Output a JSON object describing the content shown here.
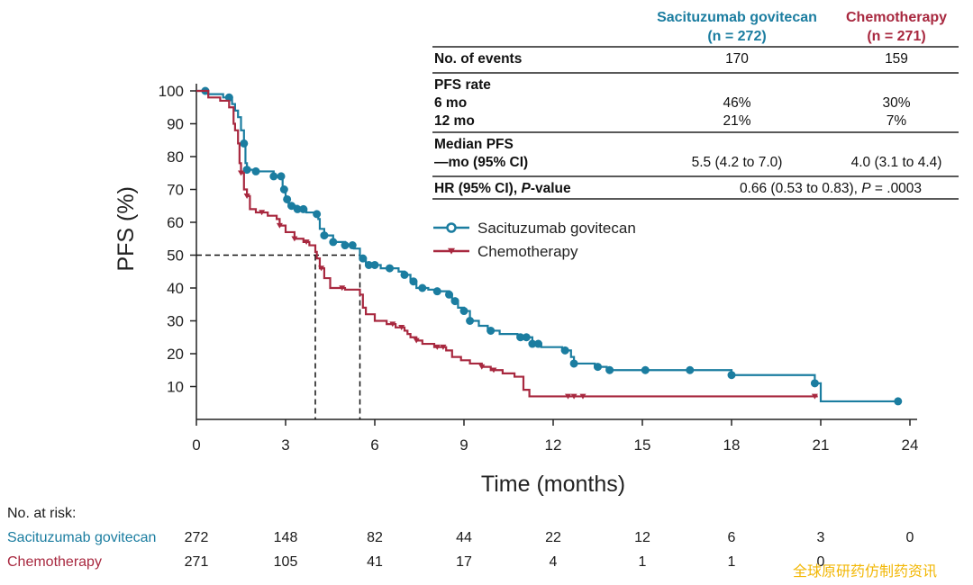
{
  "colors": {
    "sacituzumab": "#1b7da0",
    "chemotherapy": "#a8283f",
    "axis": "#222222",
    "watermark": "#f2b705"
  },
  "table": {
    "col1_header": [
      "Sacituzumab govitecan",
      "(n = 272)"
    ],
    "col2_header": [
      "Chemotherapy",
      "(n = 271)"
    ],
    "rows": [
      {
        "label": [
          "No. of events"
        ],
        "v1": [
          "170"
        ],
        "v2": [
          "159"
        ]
      },
      {
        "label": [
          "PFS rate",
          "6 mo",
          "12 mo"
        ],
        "v1": [
          "",
          "46%",
          "21%"
        ],
        "v2": [
          "",
          "30%",
          "7%"
        ]
      },
      {
        "label": [
          "Median PFS",
          "—mo (95% CI)"
        ],
        "v1": [
          "",
          "5.5 (4.2 to 7.0)"
        ],
        "v2": [
          "",
          "4.0 (3.1 to 4.4)"
        ]
      },
      {
        "label_html": "HR (95% CI), <tspan font-style=\"italic\">P</tspan>-value",
        "span_html": "0.66 (0.53 to 0.83), <tspan font-style=\"italic\">P</tspan> = .0003"
      }
    ]
  },
  "chart_data": {
    "type": "line",
    "title": "",
    "xlabel": "Time (months)",
    "ylabel": "PFS (%)",
    "xlim": [
      0,
      24
    ],
    "ylim": [
      0,
      100
    ],
    "xticks": [
      0,
      3,
      6,
      9,
      12,
      15,
      18,
      21,
      24
    ],
    "yticks": [
      10,
      20,
      30,
      40,
      50,
      60,
      70,
      80,
      90,
      100
    ],
    "legend": {
      "placement": "upper-right"
    },
    "series": [
      {
        "name": "Sacituzumab govitecan",
        "marker": "circle",
        "steps": [
          [
            0,
            100
          ],
          [
            0.4,
            99
          ],
          [
            0.9,
            98
          ],
          [
            1.2,
            96
          ],
          [
            1.3,
            94
          ],
          [
            1.4,
            92
          ],
          [
            1.5,
            88
          ],
          [
            1.6,
            84
          ],
          [
            1.65,
            78
          ],
          [
            1.7,
            76
          ],
          [
            2.0,
            75.5
          ],
          [
            2.6,
            74
          ],
          [
            2.9,
            70
          ],
          [
            3.0,
            67
          ],
          [
            3.1,
            65
          ],
          [
            3.4,
            64
          ],
          [
            3.7,
            63
          ],
          [
            4.0,
            62.5
          ],
          [
            4.1,
            61
          ],
          [
            4.15,
            58
          ],
          [
            4.3,
            56
          ],
          [
            4.6,
            54
          ],
          [
            5.0,
            53
          ],
          [
            5.3,
            52
          ],
          [
            5.5,
            49
          ],
          [
            5.7,
            47
          ],
          [
            6.2,
            46
          ],
          [
            6.8,
            45
          ],
          [
            7.0,
            44
          ],
          [
            7.2,
            42
          ],
          [
            7.4,
            40
          ],
          [
            7.8,
            39.5
          ],
          [
            8.0,
            39
          ],
          [
            8.5,
            38
          ],
          [
            8.6,
            36
          ],
          [
            8.8,
            34
          ],
          [
            9.0,
            33
          ],
          [
            9.2,
            30
          ],
          [
            9.5,
            28.5
          ],
          [
            9.8,
            27
          ],
          [
            10.2,
            26
          ],
          [
            10.8,
            25
          ],
          [
            11.3,
            23
          ],
          [
            11.6,
            22
          ],
          [
            12.3,
            21
          ],
          [
            12.6,
            19
          ],
          [
            12.7,
            17
          ],
          [
            13.4,
            16
          ],
          [
            13.8,
            15
          ],
          [
            18.0,
            13.5
          ],
          [
            20.8,
            11
          ],
          [
            21.0,
            5.5
          ],
          [
            23.6,
            5.5
          ]
        ],
        "censor_x": [
          0.3,
          1.1,
          1.6,
          1.7,
          2.0,
          2.6,
          2.85,
          2.95,
          3.05,
          3.2,
          3.4,
          3.6,
          4.05,
          4.3,
          4.6,
          5.0,
          5.25,
          5.6,
          5.8,
          6.0,
          6.5,
          7.0,
          7.3,
          7.6,
          8.1,
          8.5,
          8.7,
          9.0,
          9.2,
          9.9,
          10.9,
          11.1,
          11.3,
          11.5,
          12.4,
          12.7,
          13.5,
          13.9,
          15.1,
          16.6,
          18.0,
          20.8,
          23.6
        ]
      },
      {
        "name": "Chemotherapy",
        "marker": "triangle-down",
        "steps": [
          [
            0,
            100
          ],
          [
            0.4,
            98
          ],
          [
            0.8,
            97
          ],
          [
            1.1,
            95
          ],
          [
            1.25,
            90
          ],
          [
            1.3,
            88
          ],
          [
            1.4,
            84
          ],
          [
            1.45,
            78
          ],
          [
            1.5,
            75
          ],
          [
            1.6,
            70
          ],
          [
            1.7,
            68
          ],
          [
            1.8,
            64
          ],
          [
            2.0,
            63
          ],
          [
            2.4,
            62
          ],
          [
            2.7,
            61
          ],
          [
            2.8,
            59
          ],
          [
            3.0,
            57
          ],
          [
            3.3,
            55
          ],
          [
            3.6,
            54
          ],
          [
            3.8,
            53
          ],
          [
            4.0,
            51
          ],
          [
            4.05,
            49
          ],
          [
            4.15,
            46
          ],
          [
            4.3,
            43
          ],
          [
            4.5,
            40
          ],
          [
            5.0,
            39.5
          ],
          [
            5.5,
            38
          ],
          [
            5.6,
            34
          ],
          [
            5.7,
            32
          ],
          [
            6.0,
            30
          ],
          [
            6.4,
            29
          ],
          [
            6.7,
            28
          ],
          [
            7.0,
            27
          ],
          [
            7.1,
            26
          ],
          [
            7.2,
            25
          ],
          [
            7.4,
            24
          ],
          [
            7.6,
            23
          ],
          [
            8.0,
            22
          ],
          [
            8.2,
            22
          ],
          [
            8.4,
            21
          ],
          [
            8.6,
            19
          ],
          [
            8.9,
            18
          ],
          [
            9.2,
            17
          ],
          [
            9.6,
            16
          ],
          [
            9.9,
            15
          ],
          [
            10.3,
            14
          ],
          [
            10.7,
            13
          ],
          [
            11.0,
            9
          ],
          [
            11.2,
            7
          ],
          [
            12.5,
            7
          ],
          [
            20.8,
            7
          ],
          [
            20.9,
            7
          ]
        ],
        "censor_x": [
          1.5,
          1.7,
          2.2,
          2.8,
          3.3,
          3.7,
          4.2,
          4.9,
          6.6,
          6.9,
          7.4,
          8.1,
          8.3,
          9.6,
          10.0,
          12.5,
          12.7,
          13.0,
          20.8
        ]
      }
    ]
  },
  "risk_table": {
    "title": "No. at risk:",
    "times": [
      0,
      3,
      6,
      9,
      12,
      15,
      18,
      21,
      24
    ],
    "rows": [
      {
        "name": "Sacituzumab govitecan",
        "values": [
          "272",
          "148",
          "82",
          "44",
          "22",
          "12",
          "6",
          "3",
          "0"
        ]
      },
      {
        "name": "Chemotherapy",
        "values": [
          "271",
          "105",
          "41",
          "17",
          "4",
          "1",
          "1",
          "0",
          ""
        ]
      }
    ]
  },
  "watermark": "全球原研药仿制药资讯"
}
